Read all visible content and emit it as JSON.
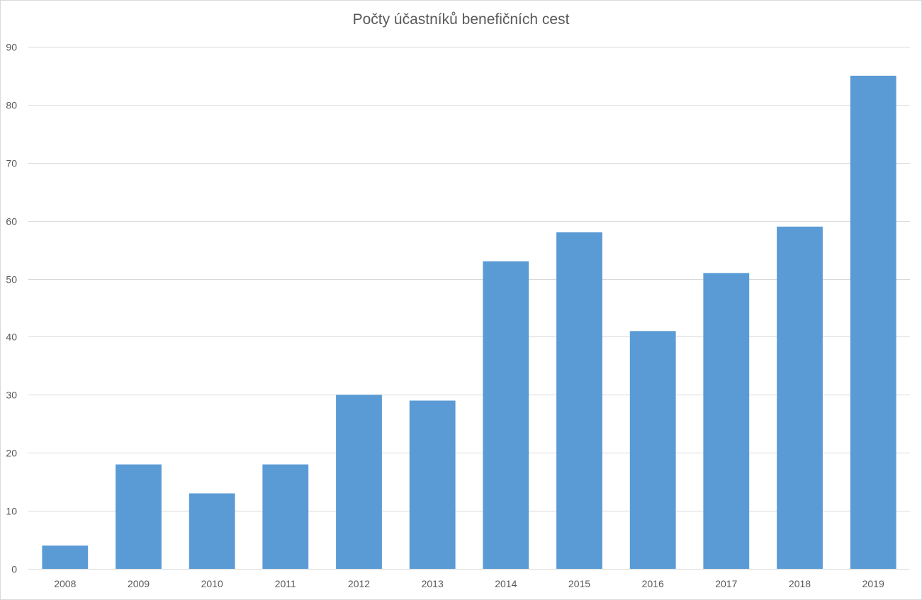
{
  "chart_data": {
    "type": "bar",
    "title": "Počty účastníků benefičních cest",
    "xlabel": "",
    "ylabel": "",
    "categories": [
      "2008",
      "2009",
      "2010",
      "2011",
      "2012",
      "2013",
      "2014",
      "2015",
      "2016",
      "2017",
      "2018",
      "2019"
    ],
    "values": [
      4,
      18,
      13,
      18,
      30,
      29,
      53,
      58,
      41,
      51,
      59,
      85
    ],
    "ylim": [
      0,
      90
    ],
    "yticks": [
      0,
      10,
      20,
      30,
      40,
      50,
      60,
      70,
      80,
      90
    ],
    "grid": true,
    "legend": "none",
    "colors": {
      "bar": "#5b9bd5",
      "grid": "#d9d9d9",
      "text": "#595959"
    }
  }
}
